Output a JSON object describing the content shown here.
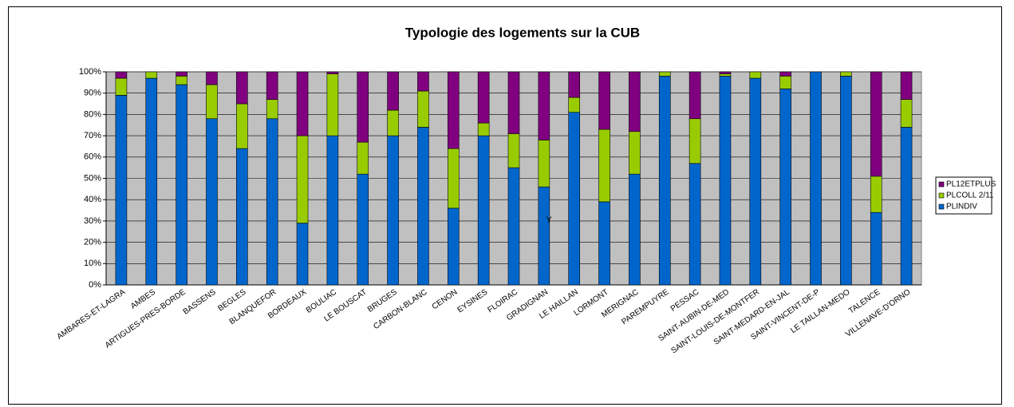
{
  "chart_data": {
    "type": "stacked_bar_100",
    "title": "Typologie des logements sur la CUB",
    "annotation": "Y",
    "categories": [
      "AMBARES-ET-LAGRA",
      "AMBES",
      "ARTIGUES-PRES-BORDE",
      "BASSENS",
      "BEGLES",
      "BLANQUEFOR",
      "BORDEAUX",
      "BOULIAC",
      "LE BOUSCAT",
      "BRUGES",
      "CARBON-BLANC",
      "CENON",
      "EYSINES",
      "FLOIRAC",
      "GRADIGNAN",
      "LE HAILLAN",
      "LORMONT",
      "MERIGNAC",
      "PAREMPUYRE",
      "PESSAC",
      "SAINT-AUBIN-DE-MED",
      "SAINT-LOUIS-DE-MONTFER",
      "SAINT-MEDARD-EN-JAL",
      "SAINT-VINCENT-DE-P",
      "LE TAILLAN-MEDO",
      "TALENCE",
      "VILLENAVE-D'ORNO"
    ],
    "series": [
      {
        "name": "PLINDIV",
        "color": "#0066cc",
        "values": [
          89,
          97,
          94,
          78,
          64,
          78,
          29,
          70,
          52,
          70,
          74,
          36,
          70,
          55,
          46,
          81,
          39,
          52,
          98,
          57,
          98,
          97,
          92,
          100,
          98,
          34,
          74
        ]
      },
      {
        "name": "PLCOLL 2/11",
        "color": "#99cc00",
        "values": [
          8,
          3,
          4,
          16,
          21,
          9,
          41,
          29,
          15,
          12,
          17,
          28,
          6,
          16,
          22,
          7,
          34,
          20,
          2,
          21,
          1,
          3,
          6,
          0,
          2,
          17,
          13
        ]
      },
      {
        "name": "PL12ETPLUS",
        "color": "#800080",
        "values": [
          3,
          0,
          2,
          6,
          15,
          13,
          30,
          1,
          33,
          18,
          9,
          36,
          24,
          29,
          32,
          12,
          27,
          28,
          0,
          22,
          1,
          0,
          2,
          0,
          0,
          49,
          13
        ]
      }
    ],
    "ylim": [
      0,
      100
    ],
    "yticks": [
      {
        "value": 0,
        "label": "0%"
      },
      {
        "value": 10,
        "label": "10%"
      },
      {
        "value": 20,
        "label": "20%"
      },
      {
        "value": 30,
        "label": "30%"
      },
      {
        "value": 40,
        "label": "40%"
      },
      {
        "value": 50,
        "label": "50%"
      },
      {
        "value": 60,
        "label": "60%"
      },
      {
        "value": 70,
        "label": "70%"
      },
      {
        "value": 80,
        "label": "80%"
      },
      {
        "value": 90,
        "label": "90%"
      },
      {
        "value": 100,
        "label": "100%"
      }
    ],
    "grid": true,
    "legend": "right",
    "plot_background": "#c0c0c0"
  }
}
